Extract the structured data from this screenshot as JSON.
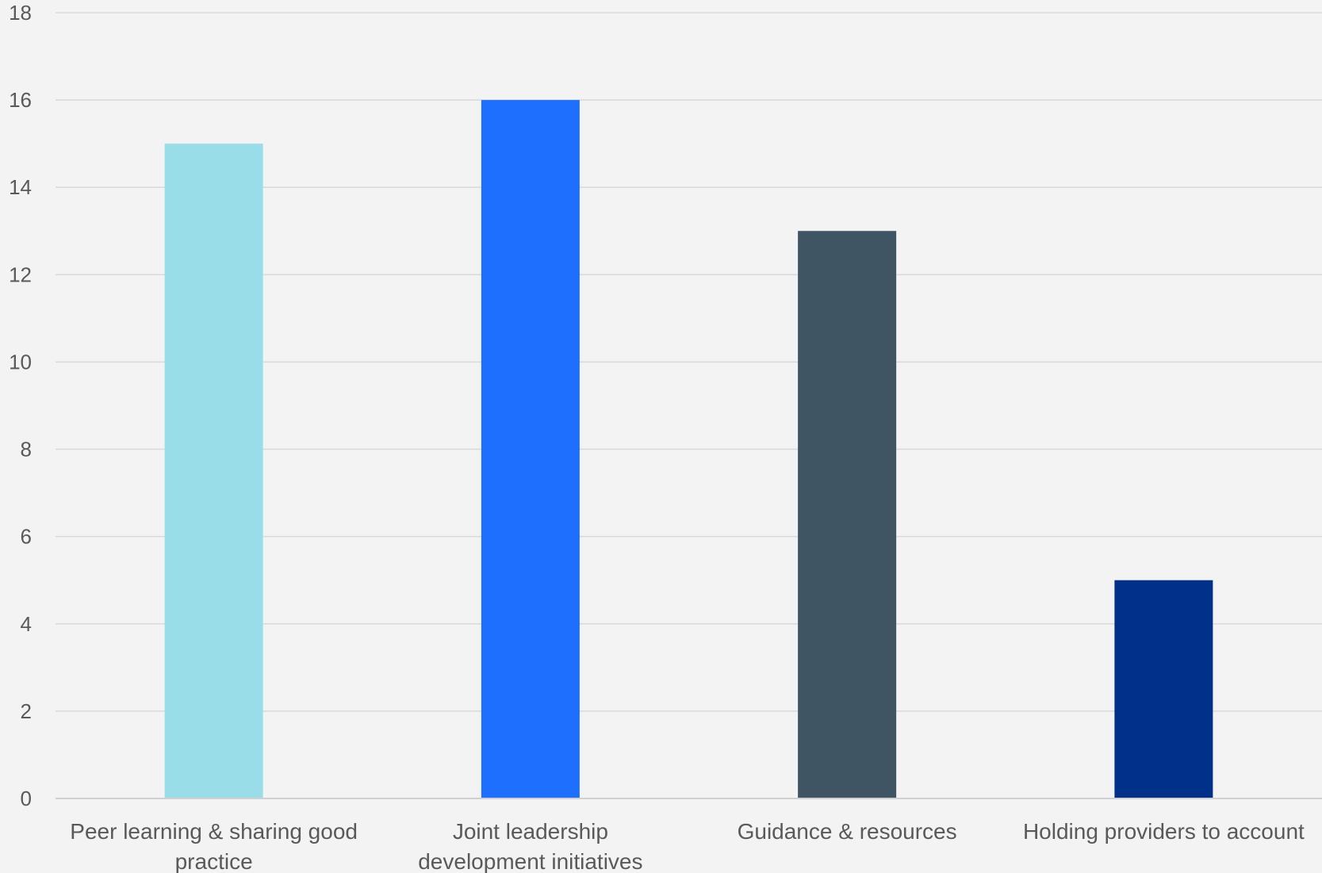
{
  "chart_data": {
    "type": "bar",
    "title": "",
    "xlabel": "",
    "ylabel": "",
    "categories": [
      [
        "Peer learning & sharing good",
        "practice"
      ],
      [
        "Joint leadership",
        "development initiatives"
      ],
      [
        "Guidance & resources"
      ],
      [
        "Holding providers to account"
      ]
    ],
    "values": [
      15,
      16,
      13,
      5
    ],
    "colors": [
      "#99dde9",
      "#1f6fff",
      "#405564",
      "#00308a"
    ],
    "ylim": [
      0,
      18
    ],
    "yticks": [
      0,
      2,
      4,
      6,
      8,
      10,
      12,
      14,
      16,
      18
    ],
    "grid": true,
    "legend": "none"
  }
}
